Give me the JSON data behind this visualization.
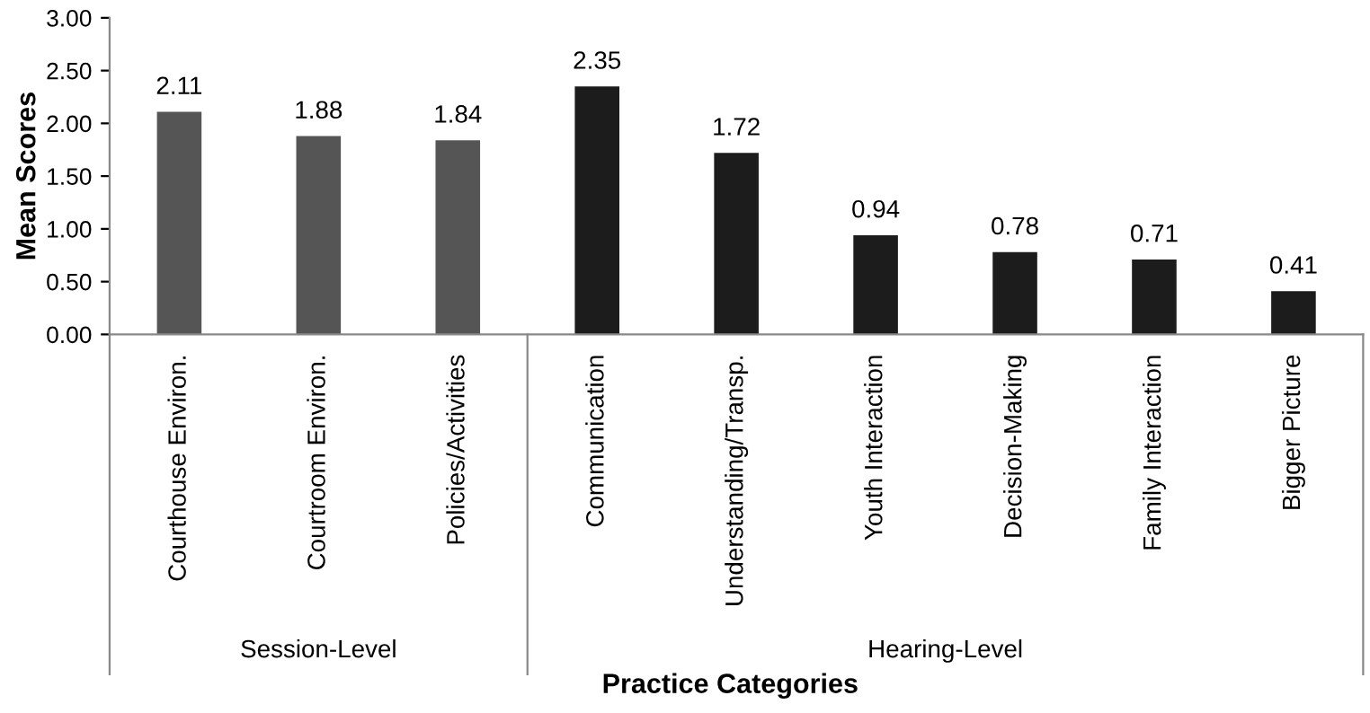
{
  "chart_data": {
    "type": "bar",
    "categories": [
      "Courthouse Environ.",
      "Courtroom Environ.",
      "Policies/Activities",
      "Communication",
      "Understanding/Transp.",
      "Youth Interaction",
      "Decision-Making",
      "Family Interaction",
      "Bigger Picture"
    ],
    "values": [
      2.11,
      1.88,
      1.84,
      2.35,
      1.72,
      0.94,
      0.78,
      0.71,
      0.41
    ],
    "colors": [
      "#555555",
      "#555555",
      "#555555",
      "#1c1c1c",
      "#1c1c1c",
      "#1c1c1c",
      "#1c1c1c",
      "#1c1c1c",
      "#1c1c1c"
    ],
    "ylabel": "Mean Scores",
    "xlabel": "Practice Categories",
    "ylim": [
      0,
      3
    ],
    "yticks": [
      {
        "value": 0,
        "label": "0.00"
      },
      {
        "value": 0.5,
        "label": "0.50"
      },
      {
        "value": 1,
        "label": "1.00"
      },
      {
        "value": 1.5,
        "label": "1.50"
      },
      {
        "value": 2,
        "label": "2.00"
      },
      {
        "value": 2.5,
        "label": "2.50"
      },
      {
        "value": 3,
        "label": "3.00"
      }
    ],
    "annotations": [
      "Session-Level",
      "Hearing-Level"
    ],
    "data_labels": true,
    "grid": false,
    "legend": false
  }
}
